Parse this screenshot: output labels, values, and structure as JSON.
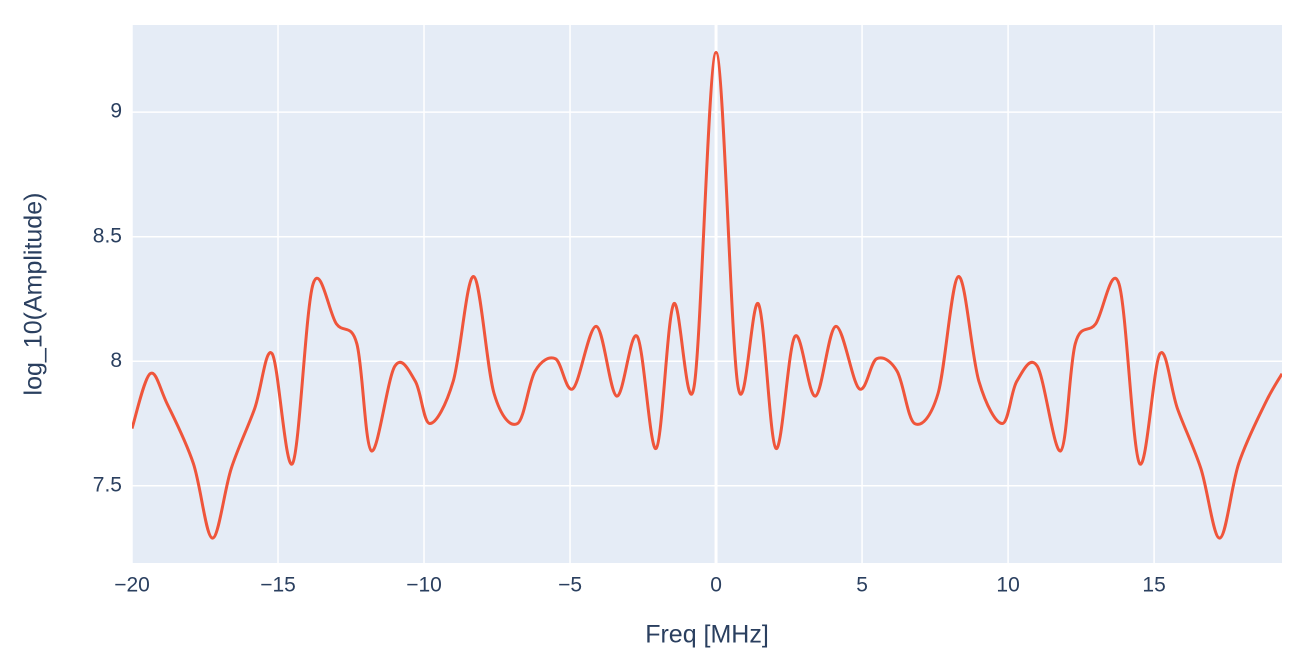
{
  "chart_data": {
    "type": "line",
    "xlabel": "Freq [MHz]",
    "ylabel": "log_10(Amplitude)",
    "x": [
      -20,
      -19.38,
      -18.8,
      -17.9,
      -17.25,
      -16.6,
      -15.8,
      -15.2,
      -14.5,
      -13.8,
      -13.0,
      -12.3,
      -11.8,
      -11.0,
      -10.3,
      -9.8,
      -9.0,
      -8.3,
      -7.6,
      -6.8,
      -6.2,
      -5.5,
      -4.9,
      -4.1,
      -3.4,
      -2.7,
      -2.05,
      -1.45,
      -0.75,
      0,
      0.75,
      1.45,
      2.05,
      2.7,
      3.4,
      4.1,
      4.9,
      5.5,
      6.2,
      6.8,
      7.6,
      8.3,
      9.0,
      9.8,
      10.3,
      11.0,
      11.8,
      12.3,
      13.0,
      13.8,
      14.5,
      15.2,
      15.8,
      16.6,
      17.25,
      17.9,
      18.8,
      19.38
    ],
    "series": [
      {
        "name": "amplitude",
        "color": "#ef553b",
        "values": [
          7.73,
          7.95,
          7.83,
          7.59,
          7.29,
          7.57,
          7.81,
          8.03,
          7.59,
          8.31,
          8.15,
          8.07,
          7.64,
          7.98,
          7.92,
          7.75,
          7.92,
          8.34,
          7.87,
          7.75,
          7.96,
          8.01,
          7.89,
          8.14,
          7.86,
          8.1,
          7.65,
          8.23,
          7.9,
          9.24,
          7.9,
          8.23,
          7.65,
          8.1,
          7.86,
          8.14,
          7.89,
          8.01,
          7.96,
          7.75,
          7.87,
          8.34,
          7.92,
          7.75,
          7.92,
          7.98,
          7.64,
          8.07,
          8.15,
          8.31,
          7.59,
          8.03,
          7.81,
          7.57,
          7.29,
          7.59,
          7.83,
          7.95
        ]
      }
    ],
    "xlim": [
      -20,
      19.38
    ],
    "ylim": [
      7.19,
      9.35
    ],
    "xticks": [
      {
        "value": -20,
        "label": "−20"
      },
      {
        "value": -15,
        "label": "−15"
      },
      {
        "value": -10,
        "label": "−10"
      },
      {
        "value": -5,
        "label": "−5"
      },
      0,
      5,
      10,
      15
    ],
    "yticks": [
      7.5,
      8,
      8.5,
      9
    ],
    "grid": true
  }
}
